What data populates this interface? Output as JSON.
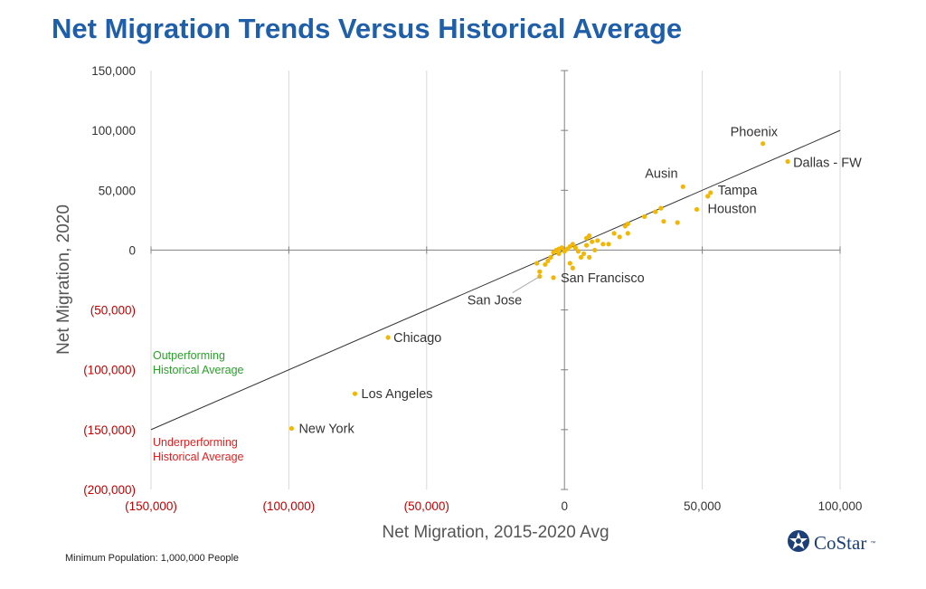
{
  "title": "Net Migration Trends Versus Historical Average",
  "footnote": "Minimum Population: 1,000,000 People",
  "logo": {
    "text": "CoStar",
    "tm": "™",
    "icon": "costar-star-icon"
  },
  "colors": {
    "title": "#1f5faa",
    "point": "#f2b705",
    "negative_tick": "#c00000",
    "positive_tick": "#333333",
    "outperforming": "#2aa02a",
    "underperforming": "#e02020",
    "trend_line": "#333333",
    "grid": "#d9d9d9"
  },
  "chart_data": {
    "type": "scatter",
    "xlabel": "Net Migration, 2015-2020 Avg",
    "ylabel": "Net Migration, 2020",
    "xlim": [
      -150000,
      100000
    ],
    "ylim": [
      -200000,
      150000
    ],
    "x_ticks": [
      {
        "value": -150000,
        "label": "(150,000)"
      },
      {
        "value": -100000,
        "label": "(100,000)"
      },
      {
        "value": -50000,
        "label": "(50,000)"
      },
      {
        "value": 0,
        "label": "0"
      },
      {
        "value": 50000,
        "label": "50,000"
      },
      {
        "value": 100000,
        "label": "100,000"
      }
    ],
    "y_ticks": [
      {
        "value": 150000,
        "label": "150,000"
      },
      {
        "value": 100000,
        "label": "100,000"
      },
      {
        "value": 50000,
        "label": "50,000"
      },
      {
        "value": 0,
        "label": "0"
      },
      {
        "value": -50000,
        "label": "(50,000)"
      },
      {
        "value": -100000,
        "label": "(100,000)"
      },
      {
        "value": -150000,
        "label": "(150,000)"
      },
      {
        "value": -200000,
        "label": "(200,000)"
      }
    ],
    "grid": true,
    "reference_line": {
      "slope": 1,
      "intercept": 0
    },
    "annotations": [
      {
        "text": "Outperforming\nHistorical Average",
        "color": "#2aa02a"
      },
      {
        "text": "Underperforming\nHistorical Average",
        "color": "#e02020"
      }
    ],
    "labeled_points": [
      {
        "name": "Phoenix",
        "x": 72000,
        "y": 89000
      },
      {
        "name": "Dallas - FW",
        "x": 81000,
        "y": 74000
      },
      {
        "name": "Ausin",
        "x": 43000,
        "y": 53000
      },
      {
        "name": "Tampa",
        "x": 53000,
        "y": 48000
      },
      {
        "name": "Houston",
        "x": 48000,
        "y": 34000
      },
      {
        "name": "San Francisco",
        "x": -4000,
        "y": -23000
      },
      {
        "name": "San Jose",
        "x": -9000,
        "y": -22000
      },
      {
        "name": "Chicago",
        "x": -64000,
        "y": -73000
      },
      {
        "name": "Los Angeles",
        "x": -76000,
        "y": -120000
      },
      {
        "name": "New York",
        "x": -99000,
        "y": -149000
      }
    ],
    "points": [
      [
        -9000,
        -18000
      ],
      [
        -10000,
        -11000
      ],
      [
        -7000,
        -12000
      ],
      [
        -6000,
        -9000
      ],
      [
        -5000,
        -6000
      ],
      [
        -4000,
        -2000
      ],
      [
        -3000,
        0
      ],
      [
        -2000,
        -3000
      ],
      [
        -1000,
        2000
      ],
      [
        0,
        -1000
      ],
      [
        1000,
        1000
      ],
      [
        2000,
        -11000
      ],
      [
        3000,
        5000
      ],
      [
        4000,
        2000
      ],
      [
        5000,
        -1000
      ],
      [
        3000,
        -15000
      ],
      [
        6000,
        -6000
      ],
      [
        8000,
        10000
      ],
      [
        9000,
        12000
      ],
      [
        10000,
        7000
      ],
      [
        8000,
        4000
      ],
      [
        11000,
        0
      ],
      [
        12000,
        8000
      ],
      [
        14000,
        5000
      ],
      [
        16000,
        5000
      ],
      [
        18000,
        14000
      ],
      [
        20000,
        11000
      ],
      [
        22000,
        20000
      ],
      [
        23000,
        22000
      ],
      [
        23000,
        14000
      ],
      [
        29000,
        28000
      ],
      [
        33000,
        32000
      ],
      [
        35000,
        35000
      ],
      [
        36000,
        24000
      ],
      [
        41000,
        23000
      ],
      [
        52000,
        45000
      ],
      [
        7000,
        -3000
      ],
      [
        9000,
        -6000
      ],
      [
        2000,
        3000
      ],
      [
        -2000,
        1000
      ]
    ]
  }
}
